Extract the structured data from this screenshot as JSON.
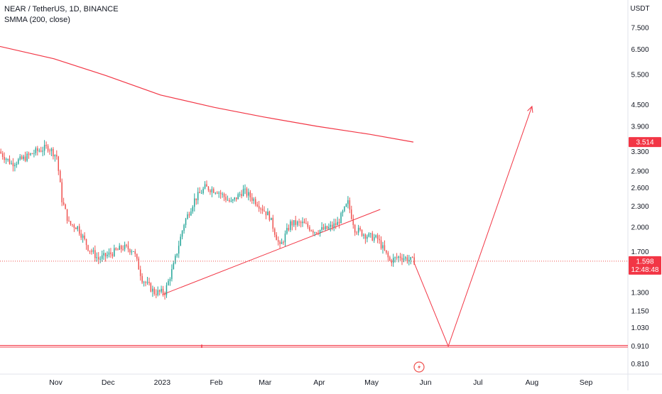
{
  "header": {
    "symbol_line": "NEAR / TetherUS, 1D, BINANCE",
    "indicator_line": "SMMA (200, close)"
  },
  "colors": {
    "bull": "#26a69a",
    "bear": "#ef5350",
    "line": "#f23645",
    "axis_text": "#131722",
    "price_tag": "#f23645"
  },
  "chart_data": {
    "type": "candlestick",
    "currency_label": "USDT",
    "y_scale": "log",
    "ylim": [
      0.76,
      9.0
    ],
    "y_ticks": [
      "7.500",
      "6.500",
      "5.500",
      "4.500",
      "3.900",
      "3.300",
      "2.900",
      "2.600",
      "2.300",
      "2.000",
      "1.700",
      "1.300",
      "1.150",
      "1.030",
      "0.910",
      "0.810"
    ],
    "x_labels": [
      "Nov",
      "Dec",
      "2023",
      "Feb",
      "Mar",
      "Apr",
      "May",
      "Jun",
      "Jul",
      "Aug",
      "Sep"
    ],
    "x_label_dates": [
      "2022-11-01",
      "2022-12-01",
      "2023-01-01",
      "2023-02-01",
      "2023-03-01",
      "2023-04-01",
      "2023-05-01",
      "2023-06-01",
      "2023-07-01",
      "2023-08-01",
      "2023-09-01"
    ],
    "xlim": [
      "2022-09-30",
      "2023-09-25"
    ],
    "last_price": "1.598",
    "countdown": "12:48:48",
    "smma_last": "3.514",
    "smma": [
      {
        "date": "2022-09-30",
        "value": 6.62
      },
      {
        "date": "2022-10-31",
        "value": 6.1
      },
      {
        "date": "2022-11-30",
        "value": 5.45
      },
      {
        "date": "2022-12-31",
        "value": 4.8
      },
      {
        "date": "2023-01-31",
        "value": 4.42
      },
      {
        "date": "2023-02-28",
        "value": 4.15
      },
      {
        "date": "2023-03-31",
        "value": 3.9
      },
      {
        "date": "2023-04-30",
        "value": 3.7
      },
      {
        "date": "2023-05-25",
        "value": 3.514
      }
    ],
    "candle_anchors": [
      {
        "date": "2022-09-30",
        "value": 3.3
      },
      {
        "date": "2022-10-07",
        "value": 3.05
      },
      {
        "date": "2022-10-14",
        "value": 3.15
      },
      {
        "date": "2022-10-21",
        "value": 3.3
      },
      {
        "date": "2022-10-28",
        "value": 3.4
      },
      {
        "date": "2022-11-02",
        "value": 3.2
      },
      {
        "date": "2022-11-05",
        "value": 2.4
      },
      {
        "date": "2022-11-09",
        "value": 2.05
      },
      {
        "date": "2022-11-14",
        "value": 2.0
      },
      {
        "date": "2022-11-20",
        "value": 1.75
      },
      {
        "date": "2022-11-26",
        "value": 1.62
      },
      {
        "date": "2022-12-03",
        "value": 1.68
      },
      {
        "date": "2022-12-10",
        "value": 1.75
      },
      {
        "date": "2022-12-16",
        "value": 1.72
      },
      {
        "date": "2022-12-21",
        "value": 1.42
      },
      {
        "date": "2022-12-28",
        "value": 1.3
      },
      {
        "date": "2023-01-03",
        "value": 1.3
      },
      {
        "date": "2023-01-08",
        "value": 1.55
      },
      {
        "date": "2023-01-14",
        "value": 2.05
      },
      {
        "date": "2023-01-20",
        "value": 2.4
      },
      {
        "date": "2023-01-26",
        "value": 2.6
      },
      {
        "date": "2023-02-02",
        "value": 2.55
      },
      {
        "date": "2023-02-10",
        "value": 2.35
      },
      {
        "date": "2023-02-17",
        "value": 2.55
      },
      {
        "date": "2023-02-25",
        "value": 2.35
      },
      {
        "date": "2023-03-04",
        "value": 2.15
      },
      {
        "date": "2023-03-10",
        "value": 1.75
      },
      {
        "date": "2023-03-16",
        "value": 2.05
      },
      {
        "date": "2023-03-23",
        "value": 2.05
      },
      {
        "date": "2023-03-30",
        "value": 1.95
      },
      {
        "date": "2023-04-06",
        "value": 1.98
      },
      {
        "date": "2023-04-12",
        "value": 2.05
      },
      {
        "date": "2023-04-18",
        "value": 2.35
      },
      {
        "date": "2023-04-22",
        "value": 1.98
      },
      {
        "date": "2023-04-28",
        "value": 1.9
      },
      {
        "date": "2023-05-05",
        "value": 1.85
      },
      {
        "date": "2023-05-12",
        "value": 1.6
      },
      {
        "date": "2023-05-18",
        "value": 1.65
      },
      {
        "date": "2023-05-25",
        "value": 1.6
      }
    ],
    "drawings": {
      "trendline": {
        "from": {
          "date": "2023-01-01",
          "value": 1.28
        },
        "to": {
          "date": "2023-05-06",
          "value": 2.25
        }
      },
      "projection": [
        {
          "date": "2023-05-25",
          "value": 1.6
        },
        {
          "date": "2023-06-14",
          "value": 0.91
        },
        {
          "date": "2023-08-01",
          "value": 4.45
        }
      ],
      "support_levels": [
        0.915,
        0.905
      ]
    }
  }
}
